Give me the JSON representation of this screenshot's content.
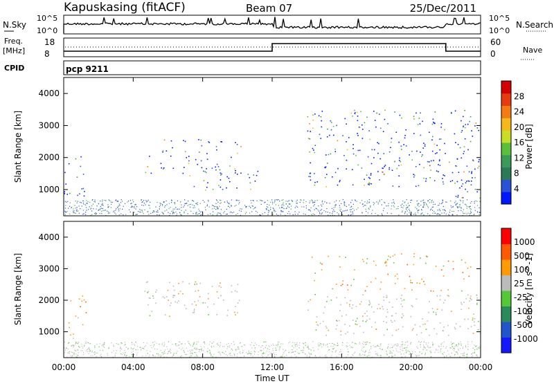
{
  "header": {
    "station": "Kapuskasing (fitACF)",
    "beam": "Beam 07",
    "date": "25/Dec/2011"
  },
  "status_panels": {
    "nsky": {
      "left_label": "N.Sky",
      "ticks": [
        "10^5",
        "10^0"
      ],
      "right_ticks": [
        "10^5",
        "10^0"
      ],
      "right_label": "N.Search"
    },
    "freq": {
      "left_label_1": "Freq.",
      "left_label_2": "[MHz]",
      "left_ticks": [
        "18",
        "8"
      ],
      "right_ticks": [
        "60",
        "0"
      ],
      "right_label": "Nave",
      "step_series": {
        "x_hours": [
          0,
          12,
          12,
          22,
          22,
          24
        ],
        "level": [
          "low",
          "low",
          "high",
          "high",
          "low",
          "low"
        ]
      }
    },
    "cpid": {
      "left_label": "CPID",
      "value": "pcp 9211"
    }
  },
  "colors": {
    "power_scale": [
      "#0018ff",
      "#2a52d6",
      "#2b7a55",
      "#3a9a5a",
      "#5bbf3c",
      "#c8dc28",
      "#f5b81a",
      "#f57a12",
      "#e63a10",
      "#d20000"
    ],
    "velocity_scale": [
      "#ff0000",
      "#ff5a00",
      "#ff9a00",
      "#bbbbbb",
      "#55c83a",
      "#2a8a5a",
      "#2255cc",
      "#1418ff"
    ]
  },
  "chart_data": [
    {
      "type": "heatmap",
      "name": "power",
      "ylabel": "Slant Range [km]",
      "xlabel": "",
      "xlim_hours": [
        0,
        24
      ],
      "ylim": [
        180,
        4500
      ],
      "y_ticks": [
        "4000",
        "3000",
        "2000",
        "1000"
      ],
      "colorbar": {
        "label": "Power [dB]",
        "ticks": [
          "28",
          "24",
          "20",
          "16",
          "12",
          "8",
          "4"
        ]
      },
      "echo_regions": [
        {
          "t0": 0.0,
          "t1": 1.3,
          "r0": 800,
          "r1": 2200,
          "level": 0.35
        },
        {
          "t0": 4.6,
          "t1": 10.2,
          "r0": 1500,
          "r1": 2600,
          "level": 0.3
        },
        {
          "t0": 7.2,
          "t1": 11.3,
          "r0": 1000,
          "r1": 1800,
          "level": 0.4
        },
        {
          "t0": 14.0,
          "t1": 24.0,
          "r0": 1100,
          "r1": 3500,
          "level": 0.45
        },
        {
          "t0": 22.5,
          "t1": 24.0,
          "r0": 700,
          "r1": 1400,
          "level": 0.6
        }
      ]
    },
    {
      "type": "heatmap",
      "name": "velocity",
      "ylabel": "Slant Range [km]",
      "xlabel": "Time UT",
      "xlim_hours": [
        0,
        24
      ],
      "ylim": [
        180,
        4500
      ],
      "y_ticks": [
        "4000",
        "3000",
        "2000",
        "1000"
      ],
      "x_ticks": [
        "00:00",
        "04:00",
        "08:00",
        "12:00",
        "16:00",
        "20:00",
        "00:00"
      ],
      "colorbar": {
        "label": "Velocity [m s^-1]",
        "ticks": [
          "1000",
          "500",
          "100",
          "25",
          "-25",
          "-100",
          "-500",
          "-1000"
        ]
      },
      "echo_regions": [
        {
          "t0": 0.0,
          "t1": 1.3,
          "r0": 800,
          "r1": 2200,
          "level": 0.3
        },
        {
          "t0": 4.6,
          "t1": 10.2,
          "r0": 1500,
          "r1": 2600,
          "level": 0.5
        },
        {
          "t0": 14.0,
          "t1": 24.0,
          "r0": 2300,
          "r1": 3500,
          "level": 0.25
        },
        {
          "t0": 14.0,
          "t1": 24.0,
          "r0": 900,
          "r1": 2200,
          "level": 0.5
        }
      ]
    }
  ]
}
